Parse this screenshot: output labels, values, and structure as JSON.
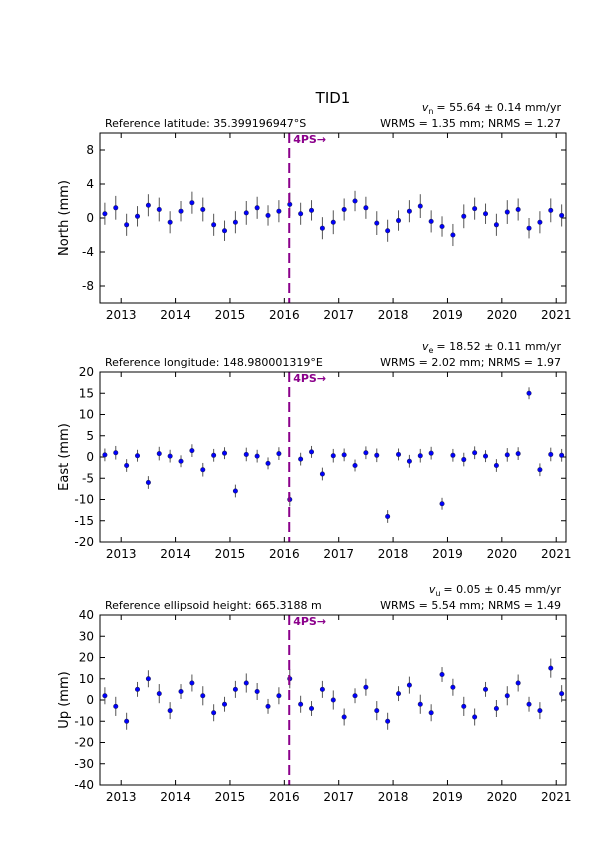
{
  "title": "TID1",
  "chart_data": [
    {
      "type": "scatter",
      "ylabel": "North (mm)",
      "reference_text": "Reference latitude: 35.399196947°S",
      "velocity_symbol": "v",
      "velocity_subscript": "n",
      "velocity_text": "= 55.64 ± 0.14 mm/yr",
      "stats_text": "WRMS = 1.35 mm; NRMS = 1.27",
      "x": [
        2012.7,
        2012.9,
        2013.1,
        2013.3,
        2013.5,
        2013.7,
        2013.9,
        2014.1,
        2014.3,
        2014.5,
        2014.7,
        2014.9,
        2015.1,
        2015.3,
        2015.5,
        2015.7,
        2015.9,
        2016.1,
        2016.3,
        2016.5,
        2016.7,
        2016.9,
        2017.1,
        2017.3,
        2017.5,
        2017.7,
        2017.9,
        2018.1,
        2018.3,
        2018.5,
        2018.7,
        2018.9,
        2019.1,
        2019.3,
        2019.5,
        2019.7,
        2019.9,
        2020.1,
        2020.3,
        2020.5,
        2020.7,
        2020.9,
        2021.1
      ],
      "series": [
        {
          "color": "#0000ff",
          "edgecolor": "#1a1a60",
          "error_color": "#555555",
          "values": [
            0.5,
            1.2,
            -0.8,
            0.2,
            1.5,
            1.0,
            -0.5,
            0.8,
            1.8,
            1.0,
            -0.8,
            -1.5,
            -0.5,
            0.6,
            1.2,
            0.3,
            0.8,
            1.6,
            0.5,
            0.9,
            -1.2,
            -0.5,
            1.0,
            2.0,
            1.2,
            -0.6,
            -1.5,
            -0.3,
            0.8,
            1.4,
            -0.4,
            -1.0,
            -2.0,
            0.2,
            1.1,
            0.5,
            -0.8,
            0.7,
            1.0,
            -1.2,
            -0.5,
            0.9,
            0.3
          ],
          "errors": [
            1.3,
            1.4,
            1.3,
            1.2,
            1.3,
            1.4,
            1.3,
            1.2,
            1.3,
            1.4,
            1.3,
            1.2,
            1.3,
            1.4,
            1.3,
            1.2,
            1.3,
            1.4,
            1.3,
            1.2,
            1.3,
            1.4,
            1.3,
            1.2,
            1.3,
            1.4,
            1.3,
            1.2,
            1.3,
            1.4,
            1.3,
            1.2,
            1.3,
            1.4,
            1.3,
            1.2,
            1.3,
            1.4,
            1.3,
            1.2,
            1.3,
            1.4,
            1.3
          ]
        }
      ],
      "xlim": [
        2012.61,
        2021.18
      ],
      "xticks": [
        2013,
        2014,
        2015,
        2016,
        2017,
        2018,
        2019,
        2020,
        2021
      ],
      "ylim": [
        -10,
        10
      ],
      "yticks": [
        -8,
        -4,
        0,
        4,
        8
      ],
      "event_x": 2016.09,
      "event_label": "4PS→",
      "event_color": "#8b008b"
    },
    {
      "type": "scatter",
      "ylabel": "East (mm)",
      "reference_text": "Reference longitude: 148.980001319°E",
      "velocity_symbol": "v",
      "velocity_subscript": "e",
      "velocity_text": "= 18.52 ± 0.11 mm/yr",
      "stats_text": "WRMS = 2.02 mm; NRMS = 1.97",
      "x": [
        2012.7,
        2012.9,
        2013.1,
        2013.3,
        2013.5,
        2013.7,
        2013.9,
        2014.1,
        2014.3,
        2014.5,
        2014.7,
        2014.9,
        2015.1,
        2015.3,
        2015.5,
        2015.7,
        2015.9,
        2016.1,
        2016.3,
        2016.5,
        2016.7,
        2016.9,
        2017.1,
        2017.3,
        2017.5,
        2017.7,
        2017.9,
        2018.1,
        2018.3,
        2018.5,
        2018.7,
        2018.9,
        2019.1,
        2019.3,
        2019.5,
        2019.7,
        2019.9,
        2020.1,
        2020.3,
        2020.5,
        2020.7,
        2020.9,
        2021.1
      ],
      "series": [
        {
          "color": "#0000ff",
          "edgecolor": "#1a1a60",
          "error_color": "#555555",
          "values": [
            0.5,
            1.0,
            -2,
            0.3,
            -6,
            0.8,
            0.2,
            -1,
            1.5,
            -3,
            0.4,
            0.9,
            -8,
            0.6,
            0.2,
            -1.5,
            0.8,
            -10,
            -0.5,
            1.2,
            -4,
            0.3,
            0.5,
            -2,
            1.0,
            0.4,
            -14,
            0.6,
            -1,
            0.3,
            0.9,
            -11,
            0.4,
            -0.6,
            1.0,
            0.2,
            -2,
            0.5,
            0.8,
            15,
            -3,
            0.6,
            0.4
          ],
          "errors": [
            1.5,
            1.6,
            1.5,
            1.4,
            1.5,
            1.6,
            1.5,
            1.4,
            1.5,
            1.6,
            1.5,
            1.4,
            1.5,
            1.6,
            1.5,
            1.4,
            1.5,
            1.6,
            1.5,
            1.4,
            1.5,
            1.6,
            1.5,
            1.4,
            1.5,
            1.6,
            1.5,
            1.4,
            1.5,
            1.6,
            1.5,
            1.4,
            1.5,
            1.6,
            1.5,
            1.4,
            1.5,
            1.6,
            1.5,
            1.4,
            1.5,
            1.6,
            1.5
          ]
        }
      ],
      "xlim": [
        2012.61,
        2021.18
      ],
      "xticks": [
        2013,
        2014,
        2015,
        2016,
        2017,
        2018,
        2019,
        2020,
        2021
      ],
      "ylim": [
        -20,
        20
      ],
      "yticks": [
        -20,
        -15,
        -10,
        -5,
        0,
        5,
        10,
        15,
        20
      ],
      "event_x": 2016.09,
      "event_label": "4PS→",
      "event_color": "#8b008b"
    },
    {
      "type": "scatter",
      "ylabel": "Up (mm)",
      "reference_text": "Reference ellipsoid height: 665.3188 m",
      "velocity_symbol": "v",
      "velocity_subscript": "u",
      "velocity_text": "= 0.05 ± 0.45 mm/yr",
      "stats_text": "WRMS = 5.54 mm; NRMS = 1.49",
      "x": [
        2012.7,
        2012.9,
        2013.1,
        2013.3,
        2013.5,
        2013.7,
        2013.9,
        2014.1,
        2014.3,
        2014.5,
        2014.7,
        2014.9,
        2015.1,
        2015.3,
        2015.5,
        2015.7,
        2015.9,
        2016.1,
        2016.3,
        2016.5,
        2016.7,
        2016.9,
        2017.1,
        2017.3,
        2017.5,
        2017.7,
        2017.9,
        2018.1,
        2018.3,
        2018.5,
        2018.7,
        2018.9,
        2019.1,
        2019.3,
        2019.5,
        2019.7,
        2019.9,
        2020.1,
        2020.3,
        2020.5,
        2020.7,
        2020.9,
        2021.1
      ],
      "series": [
        {
          "color": "#0000ff",
          "edgecolor": "#1a1a60",
          "error_color": "#555555",
          "values": [
            2,
            -3,
            -10,
            5,
            10,
            3,
            -5,
            4,
            8,
            2,
            -6,
            -2,
            5,
            8,
            4,
            -3,
            2,
            10,
            -2,
            -4,
            5,
            0,
            -8,
            2,
            6,
            -5,
            -10,
            3,
            7,
            -2,
            -6,
            12,
            6,
            -3,
            -8,
            5,
            -4,
            2,
            8,
            -2,
            -5,
            15,
            3
          ],
          "errors": [
            4,
            4.5,
            4,
            3.5,
            4,
            4.5,
            4,
            3.5,
            4,
            4.5,
            4,
            3.5,
            4,
            4.5,
            4,
            3.5,
            4,
            4.5,
            4,
            3.5,
            4,
            4.5,
            4,
            3.5,
            4,
            4.5,
            4,
            3.5,
            4,
            4.5,
            4,
            3.5,
            4,
            4.5,
            4,
            3.5,
            4,
            4.5,
            4,
            3.5,
            4,
            4.5,
            4
          ]
        }
      ],
      "xlim": [
        2012.61,
        2021.18
      ],
      "xticks": [
        2013,
        2014,
        2015,
        2016,
        2017,
        2018,
        2019,
        2020,
        2021
      ],
      "ylim": [
        -40,
        40
      ],
      "yticks": [
        -40,
        -30,
        -20,
        -10,
        0,
        10,
        20,
        30,
        40
      ],
      "event_x": 2016.09,
      "event_label": "4PS→",
      "event_color": "#8b008b"
    }
  ]
}
